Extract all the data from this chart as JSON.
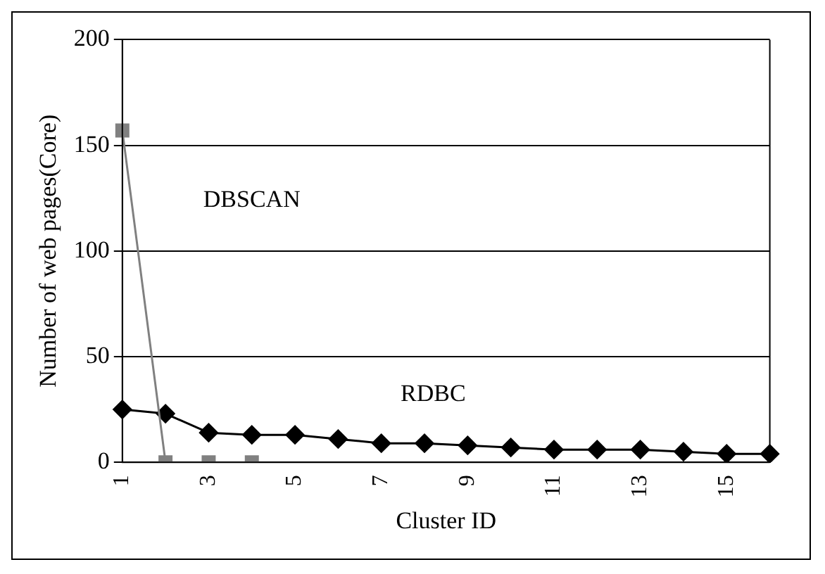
{
  "chart_data": {
    "type": "line",
    "xlabel": "Cluster ID",
    "ylabel": "Number of web pages(Core)",
    "categories": [
      "1",
      null,
      "3",
      null,
      "5",
      null,
      "7",
      null,
      "9",
      null,
      "11",
      null,
      "13",
      null,
      "15",
      null
    ],
    "series": [
      {
        "name": "DBSCAN",
        "color": "#808080",
        "marker": "square",
        "values": [
          157,
          0,
          0,
          0,
          null,
          null,
          null,
          null,
          null,
          null,
          null,
          null,
          null,
          null,
          null,
          null
        ]
      },
      {
        "name": "RDBC",
        "color": "#000000",
        "marker": "diamond",
        "values": [
          25,
          23,
          14,
          13,
          13,
          11,
          9,
          9,
          8,
          7,
          6,
          6,
          6,
          5,
          4,
          4
        ]
      }
    ],
    "ylim": [
      0,
      200
    ],
    "yticks": [
      0,
      50,
      100,
      150,
      200
    ],
    "grid": "y",
    "legend": false
  }
}
